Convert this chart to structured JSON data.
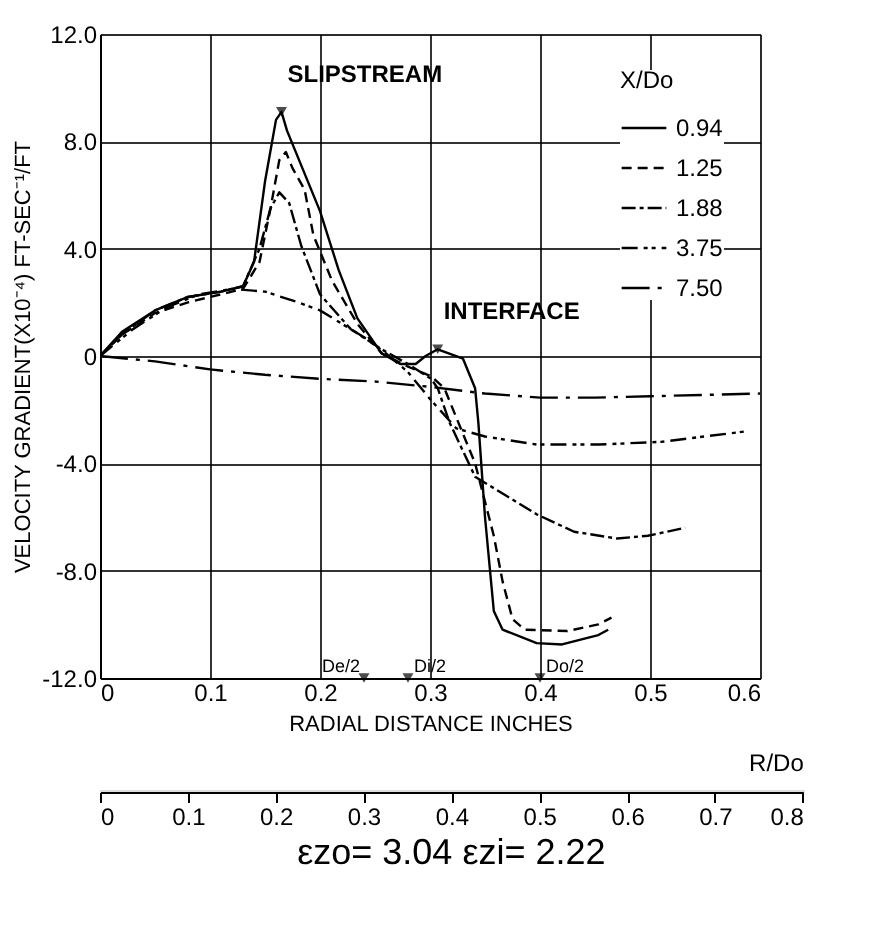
{
  "chart_data": {
    "type": "line",
    "xlabel": "RADIAL   DISTANCE   INCHES",
    "ylabel": "VELOCITY   GRADIENT(X10⁻⁴)   FT-SEC⁻¹/FT",
    "x2label": "R/Do",
    "legend_title": "X/Do",
    "legend": "top right",
    "grid": true,
    "xlim": [
      0,
      0.6
    ],
    "xticks": [
      0,
      0.1,
      0.2,
      0.3,
      0.4,
      0.5,
      0.6
    ],
    "ylim": [
      -12,
      12
    ],
    "yticks": [
      {
        "value": -12,
        "label": "-12.0"
      },
      {
        "value": -8,
        "label": "-8.0"
      },
      {
        "value": -4,
        "label": "-4.0"
      },
      0,
      {
        "value": 4,
        "label": "4.0"
      },
      {
        "value": 8,
        "label": "8.0"
      },
      {
        "value": 12,
        "label": "12.0"
      }
    ],
    "x2lim": [
      0,
      0.8
    ],
    "x2ticks": [
      0,
      0.1,
      0.2,
      0.3,
      0.4,
      0.5,
      0.6,
      0.7,
      0.8
    ],
    "series": [
      {
        "name": "0.94",
        "color": "#000000",
        "line_style": "solid",
        "x": [
          0,
          0.02,
          0.05,
          0.08,
          0.11,
          0.13,
          0.14,
          0.15,
          0.16,
          0.165,
          0.17,
          0.2,
          0.217,
          0.234,
          0.256,
          0.273,
          0.287,
          0.296,
          0.307,
          0.33,
          0.341,
          0.344,
          0.35,
          0.358,
          0.366,
          0.397,
          0.42,
          0.453,
          0.462
        ],
        "values": [
          0,
          0.9,
          1.7,
          2.2,
          2.4,
          2.6,
          3.5,
          6.5,
          8.8,
          9.1,
          8.4,
          5.4,
          3.2,
          1.4,
          0.1,
          -0.3,
          -0.3,
          0,
          0.25,
          -0.1,
          -1.2,
          -2.5,
          -6,
          -9.5,
          -10.2,
          -10.7,
          -10.75,
          -10.4,
          -10.2
        ]
      },
      {
        "name": "1.25",
        "color": "#000000",
        "line_style": "dashed",
        "x": [
          0,
          0.02,
          0.05,
          0.08,
          0.11,
          0.13,
          0.145,
          0.155,
          0.163,
          0.169,
          0.175,
          0.186,
          0.194,
          0.211,
          0.234,
          0.256,
          0.28,
          0.301,
          0.313,
          0.341,
          0.358,
          0.366,
          0.375,
          0.386,
          0.425,
          0.453,
          0.465
        ],
        "values": [
          0,
          0.8,
          1.6,
          2.0,
          2.3,
          2.5,
          3.5,
          5.5,
          7.3,
          7.6,
          7.0,
          6.2,
          4.5,
          2.8,
          1.2,
          0.1,
          -0.4,
          -0.75,
          -1.2,
          -4,
          -6.7,
          -8.4,
          -9.8,
          -10.2,
          -10.25,
          -10,
          -9.75
        ]
      },
      {
        "name": "1.88",
        "color": "#000000",
        "line_style": "dashdot",
        "x": [
          0,
          0.02,
          0.05,
          0.08,
          0.11,
          0.13,
          0.145,
          0.155,
          0.163,
          0.172,
          0.183,
          0.2,
          0.228,
          0.256,
          0.28,
          0.301,
          0.307,
          0.318,
          0.341,
          0.369,
          0.397,
          0.431,
          0.47,
          0.498,
          0.532
        ],
        "values": [
          0,
          0.8,
          1.7,
          2.2,
          2.4,
          2.6,
          4,
          5.5,
          6.1,
          5.7,
          4.1,
          2.3,
          1.0,
          0.25,
          -0.3,
          -0.85,
          -1.2,
          -2.5,
          -4.5,
          -5.2,
          -5.9,
          -6.55,
          -6.8,
          -6.7,
          -6.4
        ]
      },
      {
        "name": "3.75",
        "color": "#000000",
        "line_style": "dashdotdot",
        "x": [
          0,
          0.03,
          0.06,
          0.09,
          0.12,
          0.15,
          0.18,
          0.2,
          0.22,
          0.24,
          0.26,
          0.28,
          0.3,
          0.324,
          0.35,
          0.397,
          0.453,
          0.51,
          0.589
        ],
        "values": [
          0,
          1.0,
          1.8,
          2.3,
          2.5,
          2.4,
          2.0,
          1.7,
          1.2,
          0.7,
          0.1,
          -0.6,
          -1.6,
          -2.7,
          -3.0,
          -3.3,
          -3.3,
          -3.2,
          -2.8
        ]
      },
      {
        "name": "7.50",
        "color": "#000000",
        "line_style": "longdashdot",
        "x": [
          0,
          0.05,
          0.1,
          0.15,
          0.2,
          0.25,
          0.3,
          0.35,
          0.4,
          0.45,
          0.5,
          0.55,
          0.6
        ],
        "values": [
          0,
          -0.2,
          -0.5,
          -0.7,
          -0.85,
          -0.95,
          -1.15,
          -1.4,
          -1.55,
          -1.55,
          -1.5,
          -1.45,
          -1.4
        ]
      }
    ],
    "annotations": [
      {
        "text": "SLIPSTREAM",
        "x": 0.165,
        "y": 9.1
      },
      {
        "text": "INTERFACE",
        "x": 0.307,
        "y": 0.25
      },
      {
        "text": "De/2",
        "x": 0.24,
        "y": -12
      },
      {
        "text": "Di/2",
        "x": 0.28,
        "y": -12
      },
      {
        "text": "Do/2",
        "x": 0.4,
        "y": -12
      },
      "εzo= 3.04    εzi= 2.22"
    ]
  }
}
